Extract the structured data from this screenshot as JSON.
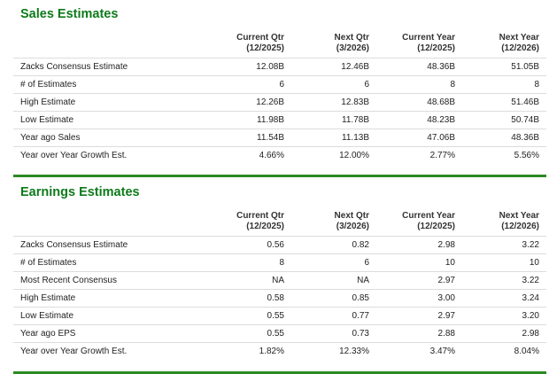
{
  "sales": {
    "title": "Sales Estimates",
    "columns": [
      {
        "line1": "Current Qtr",
        "line2": "(12/2025)"
      },
      {
        "line1": "Next Qtr",
        "line2": "(3/2026)"
      },
      {
        "line1": "Current Year",
        "line2": "(12/2025)"
      },
      {
        "line1": "Next Year",
        "line2": "(12/2026)"
      }
    ],
    "rows": [
      {
        "label": "Zacks Consensus Estimate",
        "values": [
          "12.08B",
          "12.46B",
          "48.36B",
          "51.05B"
        ]
      },
      {
        "label": "# of Estimates",
        "values": [
          "6",
          "6",
          "8",
          "8"
        ]
      },
      {
        "label": "High Estimate",
        "values": [
          "12.26B",
          "12.83B",
          "48.68B",
          "51.46B"
        ]
      },
      {
        "label": "Low Estimate",
        "values": [
          "11.98B",
          "11.78B",
          "48.23B",
          "50.74B"
        ]
      },
      {
        "label": "Year ago Sales",
        "values": [
          "11.54B",
          "11.13B",
          "47.06B",
          "48.36B"
        ]
      },
      {
        "label": "Year over Year Growth Est.",
        "values": [
          "4.66%",
          "12.00%",
          "2.77%",
          "5.56%"
        ]
      }
    ]
  },
  "earnings": {
    "title": "Earnings Estimates",
    "columns": [
      {
        "line1": "Current Qtr",
        "line2": "(12/2025)"
      },
      {
        "line1": "Next Qtr",
        "line2": "(3/2026)"
      },
      {
        "line1": "Current Year",
        "line2": "(12/2025)"
      },
      {
        "line1": "Next Year",
        "line2": "(12/2026)"
      }
    ],
    "rows": [
      {
        "label": "Zacks Consensus Estimate",
        "values": [
          "0.56",
          "0.82",
          "2.98",
          "3.22"
        ]
      },
      {
        "label": "# of Estimates",
        "values": [
          "8",
          "6",
          "10",
          "10"
        ]
      },
      {
        "label": "Most Recent Consensus",
        "values": [
          "NA",
          "NA",
          "2.97",
          "3.22"
        ]
      },
      {
        "label": "High Estimate",
        "values": [
          "0.58",
          "0.85",
          "3.00",
          "3.24"
        ]
      },
      {
        "label": "Low Estimate",
        "values": [
          "0.55",
          "0.77",
          "2.97",
          "3.20"
        ]
      },
      {
        "label": "Year ago EPS",
        "values": [
          "0.55",
          "0.73",
          "2.88",
          "2.98"
        ]
      },
      {
        "label": "Year over Year Growth Est.",
        "values": [
          "1.82%",
          "12.33%",
          "3.47%",
          "8.04%"
        ]
      }
    ]
  },
  "colors": {
    "title_green": "#0e7a1a",
    "bar_green": "#2c8a23",
    "row_border": "#dcdcdc"
  }
}
